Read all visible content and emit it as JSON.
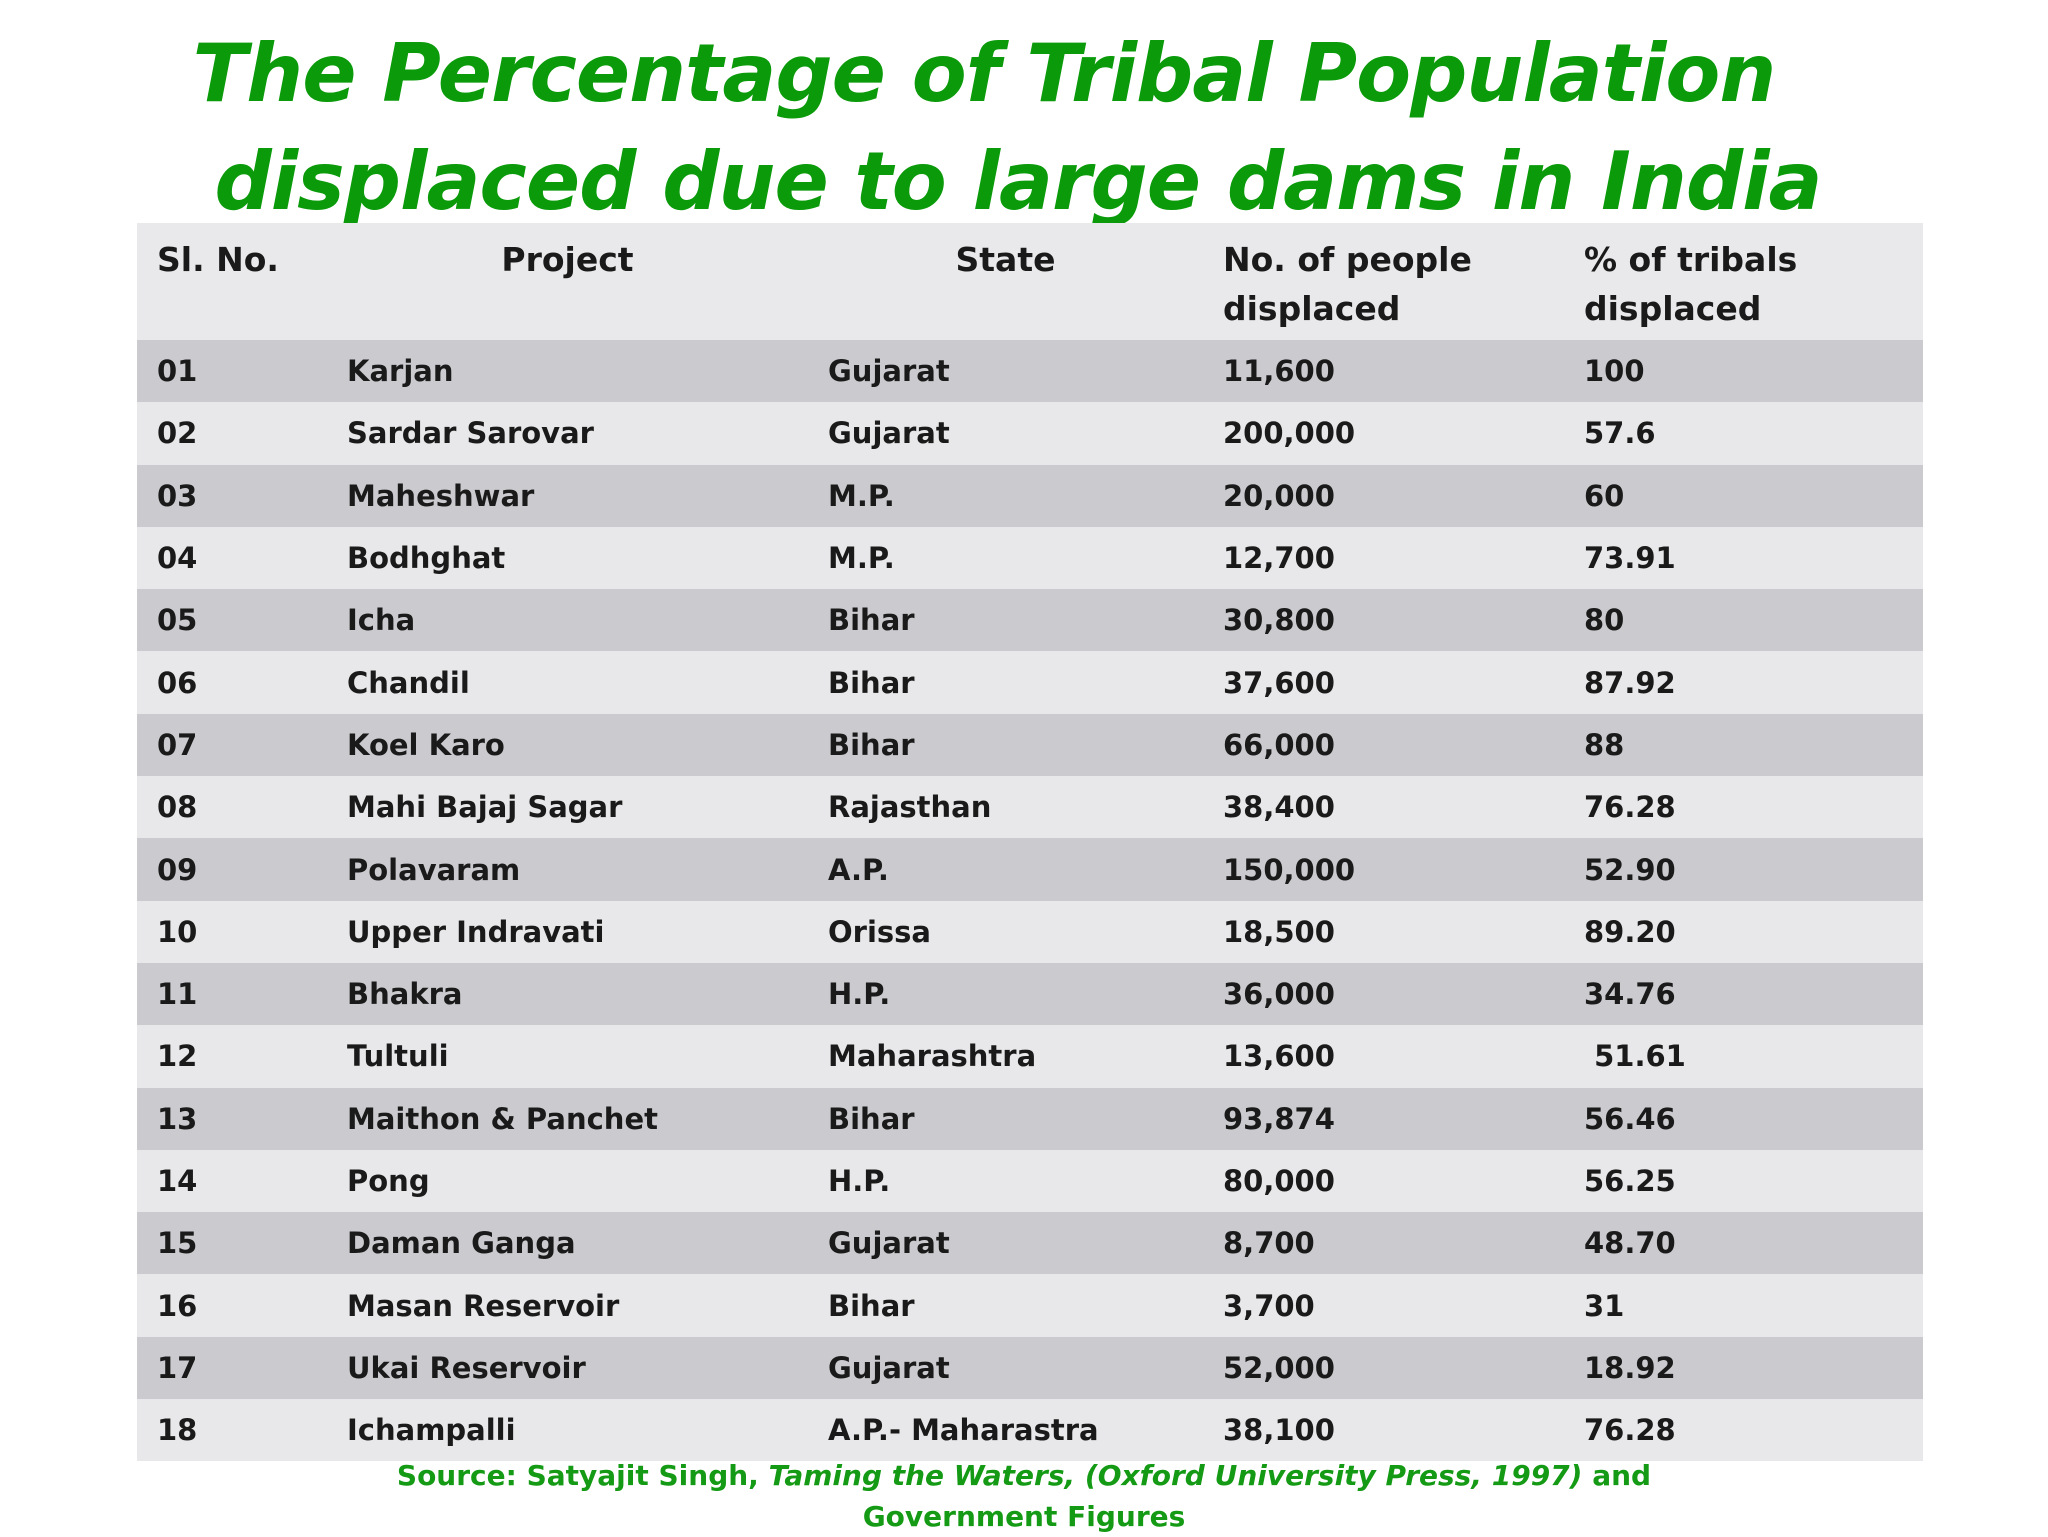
{
  "title": {
    "line1": "The Percentage of Tribal Population",
    "line2": "displaced due to large dams in India"
  },
  "table": {
    "headers": {
      "sl_no": "Sl. No.",
      "project": "Project",
      "state": "State",
      "displaced_line1": "No. of people",
      "displaced_line2": "displaced",
      "percent_line1": "% of tribals",
      "percent_line2": "displaced"
    },
    "rows": [
      {
        "sl": "01",
        "project": "Karjan",
        "state": "Gujarat",
        "people": "11,600",
        "percent": "100"
      },
      {
        "sl": "02",
        "project": "Sardar Sarovar",
        "state": "Gujarat",
        "people": "200,000",
        "percent": "57.6"
      },
      {
        "sl": "03",
        "project": "Maheshwar",
        "state": "M.P.",
        "people": "20,000",
        "percent": "60"
      },
      {
        "sl": "04",
        "project": "Bodhghat",
        "state": "M.P.",
        "people": "12,700",
        "percent": "73.91"
      },
      {
        "sl": "05",
        "project": "Icha",
        "state": "Bihar",
        "people": "30,800",
        "percent": "80"
      },
      {
        "sl": "06",
        "project": "Chandil",
        "state": "Bihar",
        "people": "37,600",
        "percent": "87.92"
      },
      {
        "sl": "07",
        "project": "Koel Karo",
        "state": "Bihar",
        "people": "66,000",
        "percent": "88"
      },
      {
        "sl": "08",
        "project": "Mahi Bajaj Sagar",
        "state": "Rajasthan",
        "people": "38,400",
        "percent": "76.28"
      },
      {
        "sl": "09",
        "project": "Polavaram",
        "state": "A.P.",
        "people": "150,000",
        "percent": "52.90"
      },
      {
        "sl": "10",
        "project": "Upper Indravati",
        "state": "Orissa",
        "people": "18,500",
        "percent": "89.20"
      },
      {
        "sl": "11",
        "project": "Bhakra",
        "state": "H.P.",
        "people": "36,000",
        "percent": "34.76"
      },
      {
        "sl": "12",
        "project": "Tultuli",
        "state": "Maharashtra",
        "people": "13,600",
        "percent": " 51.61"
      },
      {
        "sl": "13",
        "project": "Maithon & Panchet",
        "state": "Bihar",
        "people": "93,874",
        "percent": "56.46"
      },
      {
        "sl": "14",
        "project": "Pong",
        "state": "H.P.",
        "people": "80,000",
        "percent": "56.25"
      },
      {
        "sl": "15",
        "project": "Daman Ganga",
        "state": "Gujarat",
        "people": "8,700",
        "percent": "48.70"
      },
      {
        "sl": "16",
        "project": "Masan Reservoir",
        "state": "Bihar",
        "people": "3,700",
        "percent": "31"
      },
      {
        "sl": "17",
        "project": "Ukai Reservoir",
        "state": "Gujarat",
        "people": "52,000",
        "percent": "18.92"
      },
      {
        "sl": "18",
        "project": "Ichampalli",
        "state": "A.P.- Maharastra",
        "people": "38,100",
        "percent": "76.28"
      }
    ]
  },
  "source": {
    "prefix": "Source: Satyajit Singh, ",
    "italic": "Taming the Waters, (Oxford University Press, 1997)",
    "suffix": " and",
    "line2": "Government Figures"
  },
  "colors": {
    "title": "#0a9a0a",
    "source": "#149a14",
    "header_bg": "#e9e9eb",
    "row_dark": "#cbcbcf",
    "row_light": "#e8e8ea"
  }
}
